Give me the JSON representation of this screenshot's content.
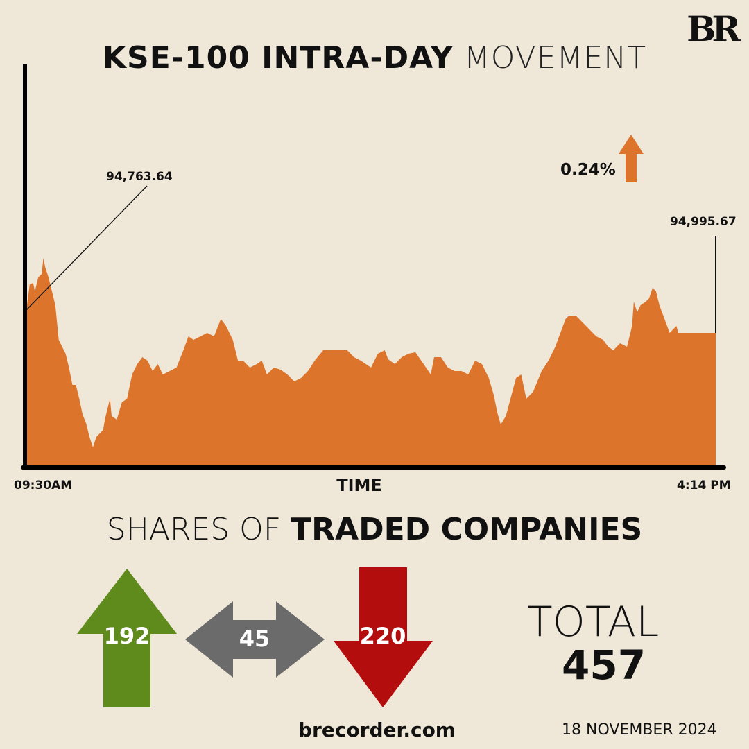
{
  "header": {
    "title_bold": "KSE-100 INTRA-DAY",
    "title_light": "MOVEMENT",
    "logo": "BR"
  },
  "annotations": {
    "open_value": "94,763.64",
    "close_value": "94,995.67",
    "change": "0.24%",
    "change_direction": "up"
  },
  "colors": {
    "background": "#efe7d7",
    "area": "#dc742b",
    "advance": "#5f8a1c",
    "unchanged": "#6b6b6b",
    "decline": "#b30d0d"
  },
  "chart_data": {
    "type": "area",
    "title": "KSE-100 INTRA-DAY MOVEMENT",
    "xlabel": "TIME",
    "ylabel": "",
    "x_tick_labels": [
      "09:30AM",
      "4:14 PM"
    ],
    "x_unit": "minutes since 09:30",
    "xlim": [
      0,
      404
    ],
    "ylim": [
      93460,
      98100
    ],
    "x": [
      0,
      2,
      4,
      5,
      7,
      9,
      10,
      11,
      13,
      15,
      17,
      19,
      20,
      23,
      25,
      27,
      29,
      31,
      33,
      35,
      37,
      39,
      41,
      45,
      46,
      49,
      50,
      53,
      56,
      59,
      62,
      65,
      68,
      71,
      74,
      77,
      80,
      84,
      88,
      92,
      95,
      98,
      102,
      106,
      110,
      114,
      117,
      121,
      124,
      127,
      131,
      135,
      138,
      141,
      145,
      149,
      153,
      157,
      161,
      165,
      169,
      174,
      178,
      182,
      188,
      192,
      196,
      202,
      206,
      210,
      212,
      216,
      220,
      224,
      228,
      232,
      237,
      239,
      243,
      247,
      251,
      255,
      259,
      263,
      267,
      271,
      274,
      276,
      278,
      281,
      287,
      290,
      293,
      297,
      302,
      306,
      310,
      313,
      316,
      318,
      322,
      326,
      330,
      334,
      338,
      341,
      344,
      348,
      352,
      355,
      356,
      358,
      360,
      363,
      365,
      367,
      369,
      371,
      374,
      377,
      379,
      381,
      382,
      404
    ],
    "values": [
      95260,
      95556,
      95572,
      95476,
      95636,
      95676,
      95860,
      95756,
      95636,
      95476,
      95316,
      94916,
      94876,
      94756,
      94596,
      94396,
      94396,
      94236,
      94052,
      93956,
      93796,
      93676,
      93796,
      93876,
      93996,
      94236,
      94036,
      93996,
      94196,
      94236,
      94516,
      94636,
      94716,
      94676,
      94556,
      94636,
      94516,
      94556,
      94596,
      94796,
      94956,
      94916,
      94956,
      94996,
      94956,
      95156,
      95076,
      94916,
      94676,
      94676,
      94596,
      94636,
      94676,
      94516,
      94596,
      94572,
      94516,
      94436,
      94476,
      94556,
      94676,
      94796,
      94796,
      94796,
      94796,
      94716,
      94676,
      94596,
      94756,
      94796,
      94692,
      94636,
      94716,
      94756,
      94772,
      94660,
      94516,
      94716,
      94716,
      94596,
      94556,
      94556,
      94516,
      94676,
      94636,
      94476,
      94276,
      94076,
      93940,
      94036,
      94476,
      94516,
      94236,
      94316,
      94556,
      94676,
      94836,
      94996,
      95156,
      95196,
      95196,
      95116,
      95036,
      94956,
      94916,
      94836,
      94796,
      94876,
      94836,
      95076,
      95356,
      95236,
      95316,
      95356,
      95396,
      95516,
      95476,
      95316,
      95156,
      94996,
      95036,
      95076,
      94996,
      94996
    ]
  },
  "shares": {
    "title_light": "SHARES OF",
    "title_bold": "TRADED COMPANIES",
    "advanced": "192",
    "unchanged": "45",
    "declined": "220",
    "total_label": "TOTAL",
    "total": "457"
  },
  "footer": {
    "website": "brecorder.com",
    "date": "18 NOVEMBER 2024"
  }
}
